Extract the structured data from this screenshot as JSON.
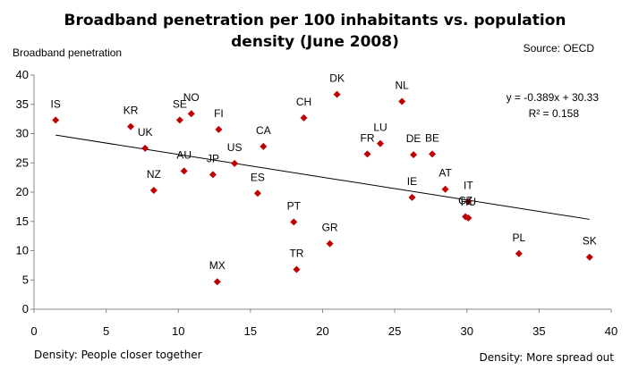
{
  "chart_data": {
    "type": "scatter",
    "title": "Broadband penetration per 100 inhabitants  vs. population density (June 2008)",
    "title_lines": [
      "Broadband penetration per 100 inhabitants  vs. population",
      "density (June 2008)"
    ],
    "source": "Source: OECD",
    "ylabel": "Broadband penetration",
    "xlabel_left": "Density: People closer together",
    "xlabel_right": "Density: More spread out",
    "xlim": [
      0,
      40
    ],
    "ylim": [
      0,
      40
    ],
    "xticks": [
      0,
      5,
      10,
      15,
      20,
      25,
      30,
      35,
      40
    ],
    "yticks": [
      0,
      5,
      10,
      15,
      20,
      25,
      30,
      35,
      40
    ],
    "grid": false,
    "marker_color": "#C00000",
    "trendline": {
      "slope": -0.389,
      "intercept": 30.33,
      "equation": "y = -0.389x + 30.33",
      "r2": "R² = 0.158",
      "color": "#000000"
    },
    "points": [
      {
        "label": "IS",
        "x": 1.5,
        "y": 32.3
      },
      {
        "label": "KR",
        "x": 6.7,
        "y": 31.2
      },
      {
        "label": "UK",
        "x": 7.7,
        "y": 27.5
      },
      {
        "label": "NZ",
        "x": 8.3,
        "y": 20.3
      },
      {
        "label": "SE",
        "x": 10.1,
        "y": 32.3
      },
      {
        "label": "NO",
        "x": 10.9,
        "y": 33.4
      },
      {
        "label": "AU",
        "x": 10.4,
        "y": 23.6
      },
      {
        "label": "JP",
        "x": 12.4,
        "y": 23.0
      },
      {
        "label": "FI",
        "x": 12.8,
        "y": 30.7
      },
      {
        "label": "US",
        "x": 13.9,
        "y": 24.9
      },
      {
        "label": "MX",
        "x": 12.7,
        "y": 4.7
      },
      {
        "label": "CA",
        "x": 15.9,
        "y": 27.8
      },
      {
        "label": "ES",
        "x": 15.5,
        "y": 19.8
      },
      {
        "label": "PT",
        "x": 18.0,
        "y": 14.9
      },
      {
        "label": "TR",
        "x": 18.2,
        "y": 6.8
      },
      {
        "label": "CH",
        "x": 18.7,
        "y": 32.7
      },
      {
        "label": "DK",
        "x": 21.0,
        "y": 36.7
      },
      {
        "label": "GR",
        "x": 20.5,
        "y": 11.2
      },
      {
        "label": "FR",
        "x": 23.1,
        "y": 26.5
      },
      {
        "label": "LU",
        "x": 24.0,
        "y": 28.3
      },
      {
        "label": "NL",
        "x": 25.5,
        "y": 35.5
      },
      {
        "label": "DE",
        "x": 26.3,
        "y": 26.4
      },
      {
        "label": "IE",
        "x": 26.2,
        "y": 19.1
      },
      {
        "label": "BE",
        "x": 27.6,
        "y": 26.5
      },
      {
        "label": "AT",
        "x": 28.5,
        "y": 20.5
      },
      {
        "label": "IT",
        "x": 30.1,
        "y": 18.4
      },
      {
        "label": "CZ",
        "x": 29.9,
        "y": 15.8
      },
      {
        "label": "HU",
        "x": 30.1,
        "y": 15.6
      },
      {
        "label": "PL",
        "x": 33.6,
        "y": 9.5
      },
      {
        "label": "SK",
        "x": 38.5,
        "y": 8.9
      }
    ]
  }
}
